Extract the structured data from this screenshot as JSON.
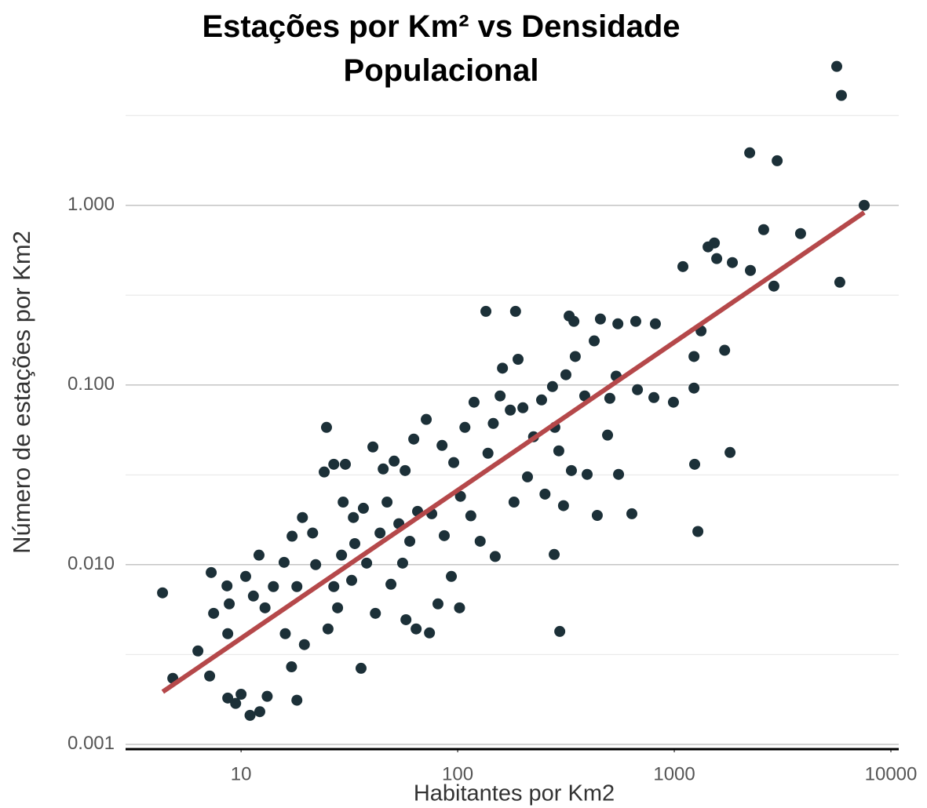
{
  "chart_data": {
    "type": "scatter",
    "title": "Estações por Km² vs Densidade Populacional",
    "xlabel": "Habitantes por Km2",
    "ylabel": "Número de estações por Km2",
    "xscale": "log",
    "yscale": "log",
    "xlim": [
      2.93,
      10870
    ],
    "ylim": [
      0.00094,
      6.6
    ],
    "xticks": [
      10,
      100,
      1000,
      10000
    ],
    "yticks": [
      {
        "value": 0.001,
        "label": "0.001"
      },
      {
        "value": 0.01,
        "label": "0.010"
      },
      {
        "value": 0.1,
        "label": "0.100"
      },
      {
        "value": 1,
        "label": "1.000"
      }
    ],
    "yminor": [
      0.00316,
      0.0316,
      0.316,
      3.162
    ],
    "grid": true,
    "color": "#1c3038",
    "trend": {
      "x": [
        4.35,
        7530
      ],
      "y": [
        0.00196,
        0.913
      ],
      "color": "#b5484a"
    },
    "x": [
      4.34,
      4.84,
      6.32,
      7.16,
      7.28,
      7.47,
      8.61,
      8.68,
      8.82,
      8.68,
      9.44,
      10.5,
      10,
      11.0,
      11.4,
      12.1,
      12.2,
      12.9,
      14.1,
      13.2,
      15.8,
      16.0,
      17.1,
      17.2,
      18.1,
      19.2,
      18.1,
      19.6,
      21.4,
      22.1,
      24.2,
      24.8,
      25.2,
      26.8,
      26.8,
      27.9,
      29.1,
      30.3,
      29.6,
      32.4,
      33.0,
      33.5,
      35.8,
      36.7,
      38.0,
      40.6,
      41.7,
      43.8,
      45.3,
      47.2,
      49.2,
      50.9,
      53.5,
      55.7,
      57.2,
      57.7,
      60.1,
      62.7,
      64.3,
      65.3,
      71.6,
      74.1,
      75.9,
      81.1,
      84.7,
      86.7,
      93.5,
      95.9,
      102,
      103,
      108,
      115,
      119,
      127,
      135,
      138,
      146,
      149,
      157,
      161,
      175,
      182,
      185,
      190,
      200,
      210,
      224,
      244,
      253,
      274,
      279,
      281,
      293,
      296,
      308,
      316,
      327,
      335,
      344,
      349,
      386,
      396,
      427,
      441,
      456,
      492,
      504,
      539,
      553,
      549,
      637,
      664,
      676,
      818,
      805,
      991,
      1096,
      1233,
      1233,
      1242,
      1285,
      1329,
      1432,
      1531,
      1570,
      1708,
      1809,
      1854,
      2229,
      2246,
      2586,
      2883,
      2985,
      3828,
      5623,
      5910,
      5810,
      7530
    ],
    "y": [
      0.00697,
      0.00233,
      0.00331,
      0.0024,
      0.00904,
      0.00536,
      0.00762,
      0.00413,
      0.00605,
      0.00181,
      0.00169,
      0.0086,
      0.0019,
      0.00145,
      0.00669,
      0.0113,
      0.00152,
      0.00575,
      0.00755,
      0.00185,
      0.0103,
      0.00413,
      0.0027,
      0.0144,
      0.00176,
      0.0183,
      0.00755,
      0.00359,
      0.015,
      0.01,
      0.0328,
      0.0581,
      0.00439,
      0.0362,
      0.00755,
      0.00575,
      0.0113,
      0.0362,
      0.0223,
      0.00818,
      0.0183,
      0.0131,
      0.00265,
      0.0206,
      0.0102,
      0.0452,
      0.00536,
      0.015,
      0.0341,
      0.0223,
      0.00778,
      0.0377,
      0.0169,
      0.0102,
      0.0334,
      0.00494,
      0.0135,
      0.05,
      0.00439,
      0.0198,
      0.0643,
      0.00417,
      0.0192,
      0.00605,
      0.0461,
      0.0145,
      0.0086,
      0.037,
      0.00575,
      0.024,
      0.0581,
      0.0187,
      0.0802,
      0.0135,
      0.257,
      0.0417,
      0.0611,
      0.0111,
      0.0869,
      0.124,
      0.0725,
      0.0223,
      0.257,
      0.139,
      0.0747,
      0.0308,
      0.0515,
      0.0826,
      0.0247,
      0.098,
      0.0114,
      0.0581,
      0.043,
      0.00425,
      0.0213,
      0.114,
      0.242,
      0.0334,
      0.226,
      0.144,
      0.0869,
      0.0318,
      0.176,
      0.0188,
      0.233,
      0.0526,
      0.0843,
      0.112,
      0.0318,
      0.219,
      0.0192,
      0.226,
      0.0941,
      0.219,
      0.0851,
      0.0802,
      0.456,
      0.144,
      0.0961,
      0.0362,
      0.0153,
      0.2,
      0.587,
      0.617,
      0.505,
      0.156,
      0.0421,
      0.48,
      1.96,
      0.434,
      0.732,
      0.355,
      1.77,
      0.696,
      5.93,
      4.09,
      0.373,
      1.0
    ]
  }
}
